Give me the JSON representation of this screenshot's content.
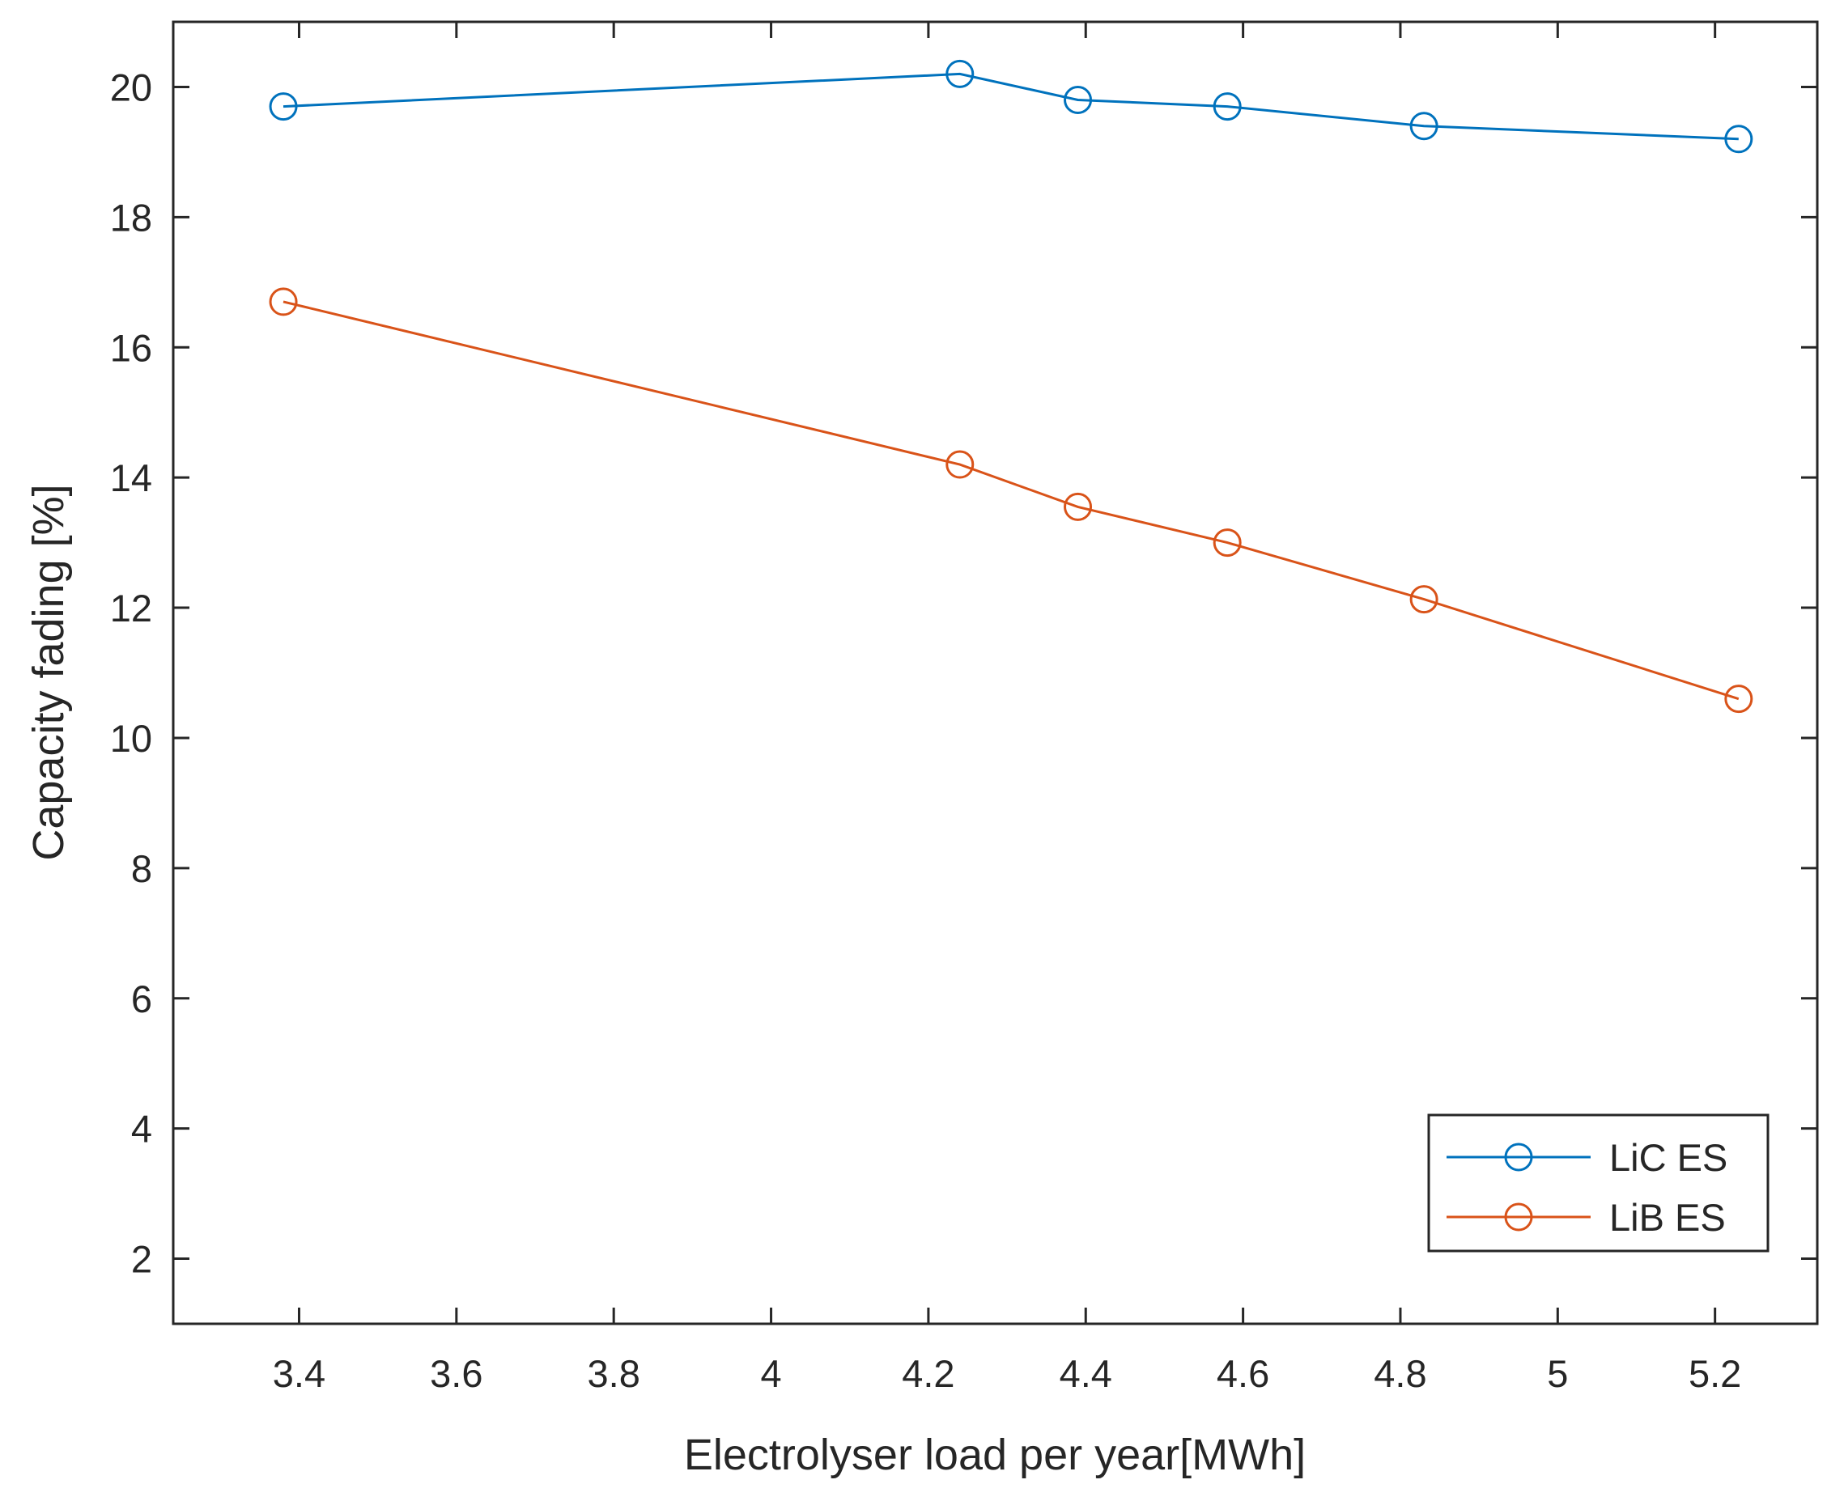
{
  "chart_data": {
    "type": "line",
    "title": "",
    "xlabel": "Electrolyser load per year[MWh]",
    "ylabel": "Capacity fading [%]",
    "xlim": [
      3.24,
      5.33
    ],
    "ylim": [
      1,
      21
    ],
    "xticks": [
      3.4,
      3.6,
      3.8,
      4,
      4.2,
      4.4,
      4.6,
      4.8,
      5,
      5.2
    ],
    "xtick_labels": [
      "3.4",
      "3.6",
      "3.8",
      "4",
      "4.2",
      "4.4",
      "4.6",
      "4.8",
      "5",
      "5.2"
    ],
    "yticks": [
      2,
      4,
      6,
      8,
      10,
      12,
      14,
      16,
      18,
      20
    ],
    "ytick_labels": [
      "2",
      "4",
      "6",
      "8",
      "10",
      "12",
      "14",
      "16",
      "18",
      "20"
    ],
    "grid": false,
    "legend_position": "bottom-right",
    "x": [
      3.38,
      4.24,
      4.39,
      4.58,
      4.83,
      5.23
    ],
    "series": [
      {
        "name": "LiC ES",
        "color": "#0072BD",
        "marker": "circle",
        "values": [
          19.7,
          20.2,
          19.8,
          19.7,
          19.4,
          19.2
        ]
      },
      {
        "name": "LiB ES",
        "color": "#D95319",
        "marker": "circle",
        "values": [
          16.7,
          14.2,
          13.55,
          13.0,
          12.13,
          10.6
        ]
      }
    ]
  }
}
